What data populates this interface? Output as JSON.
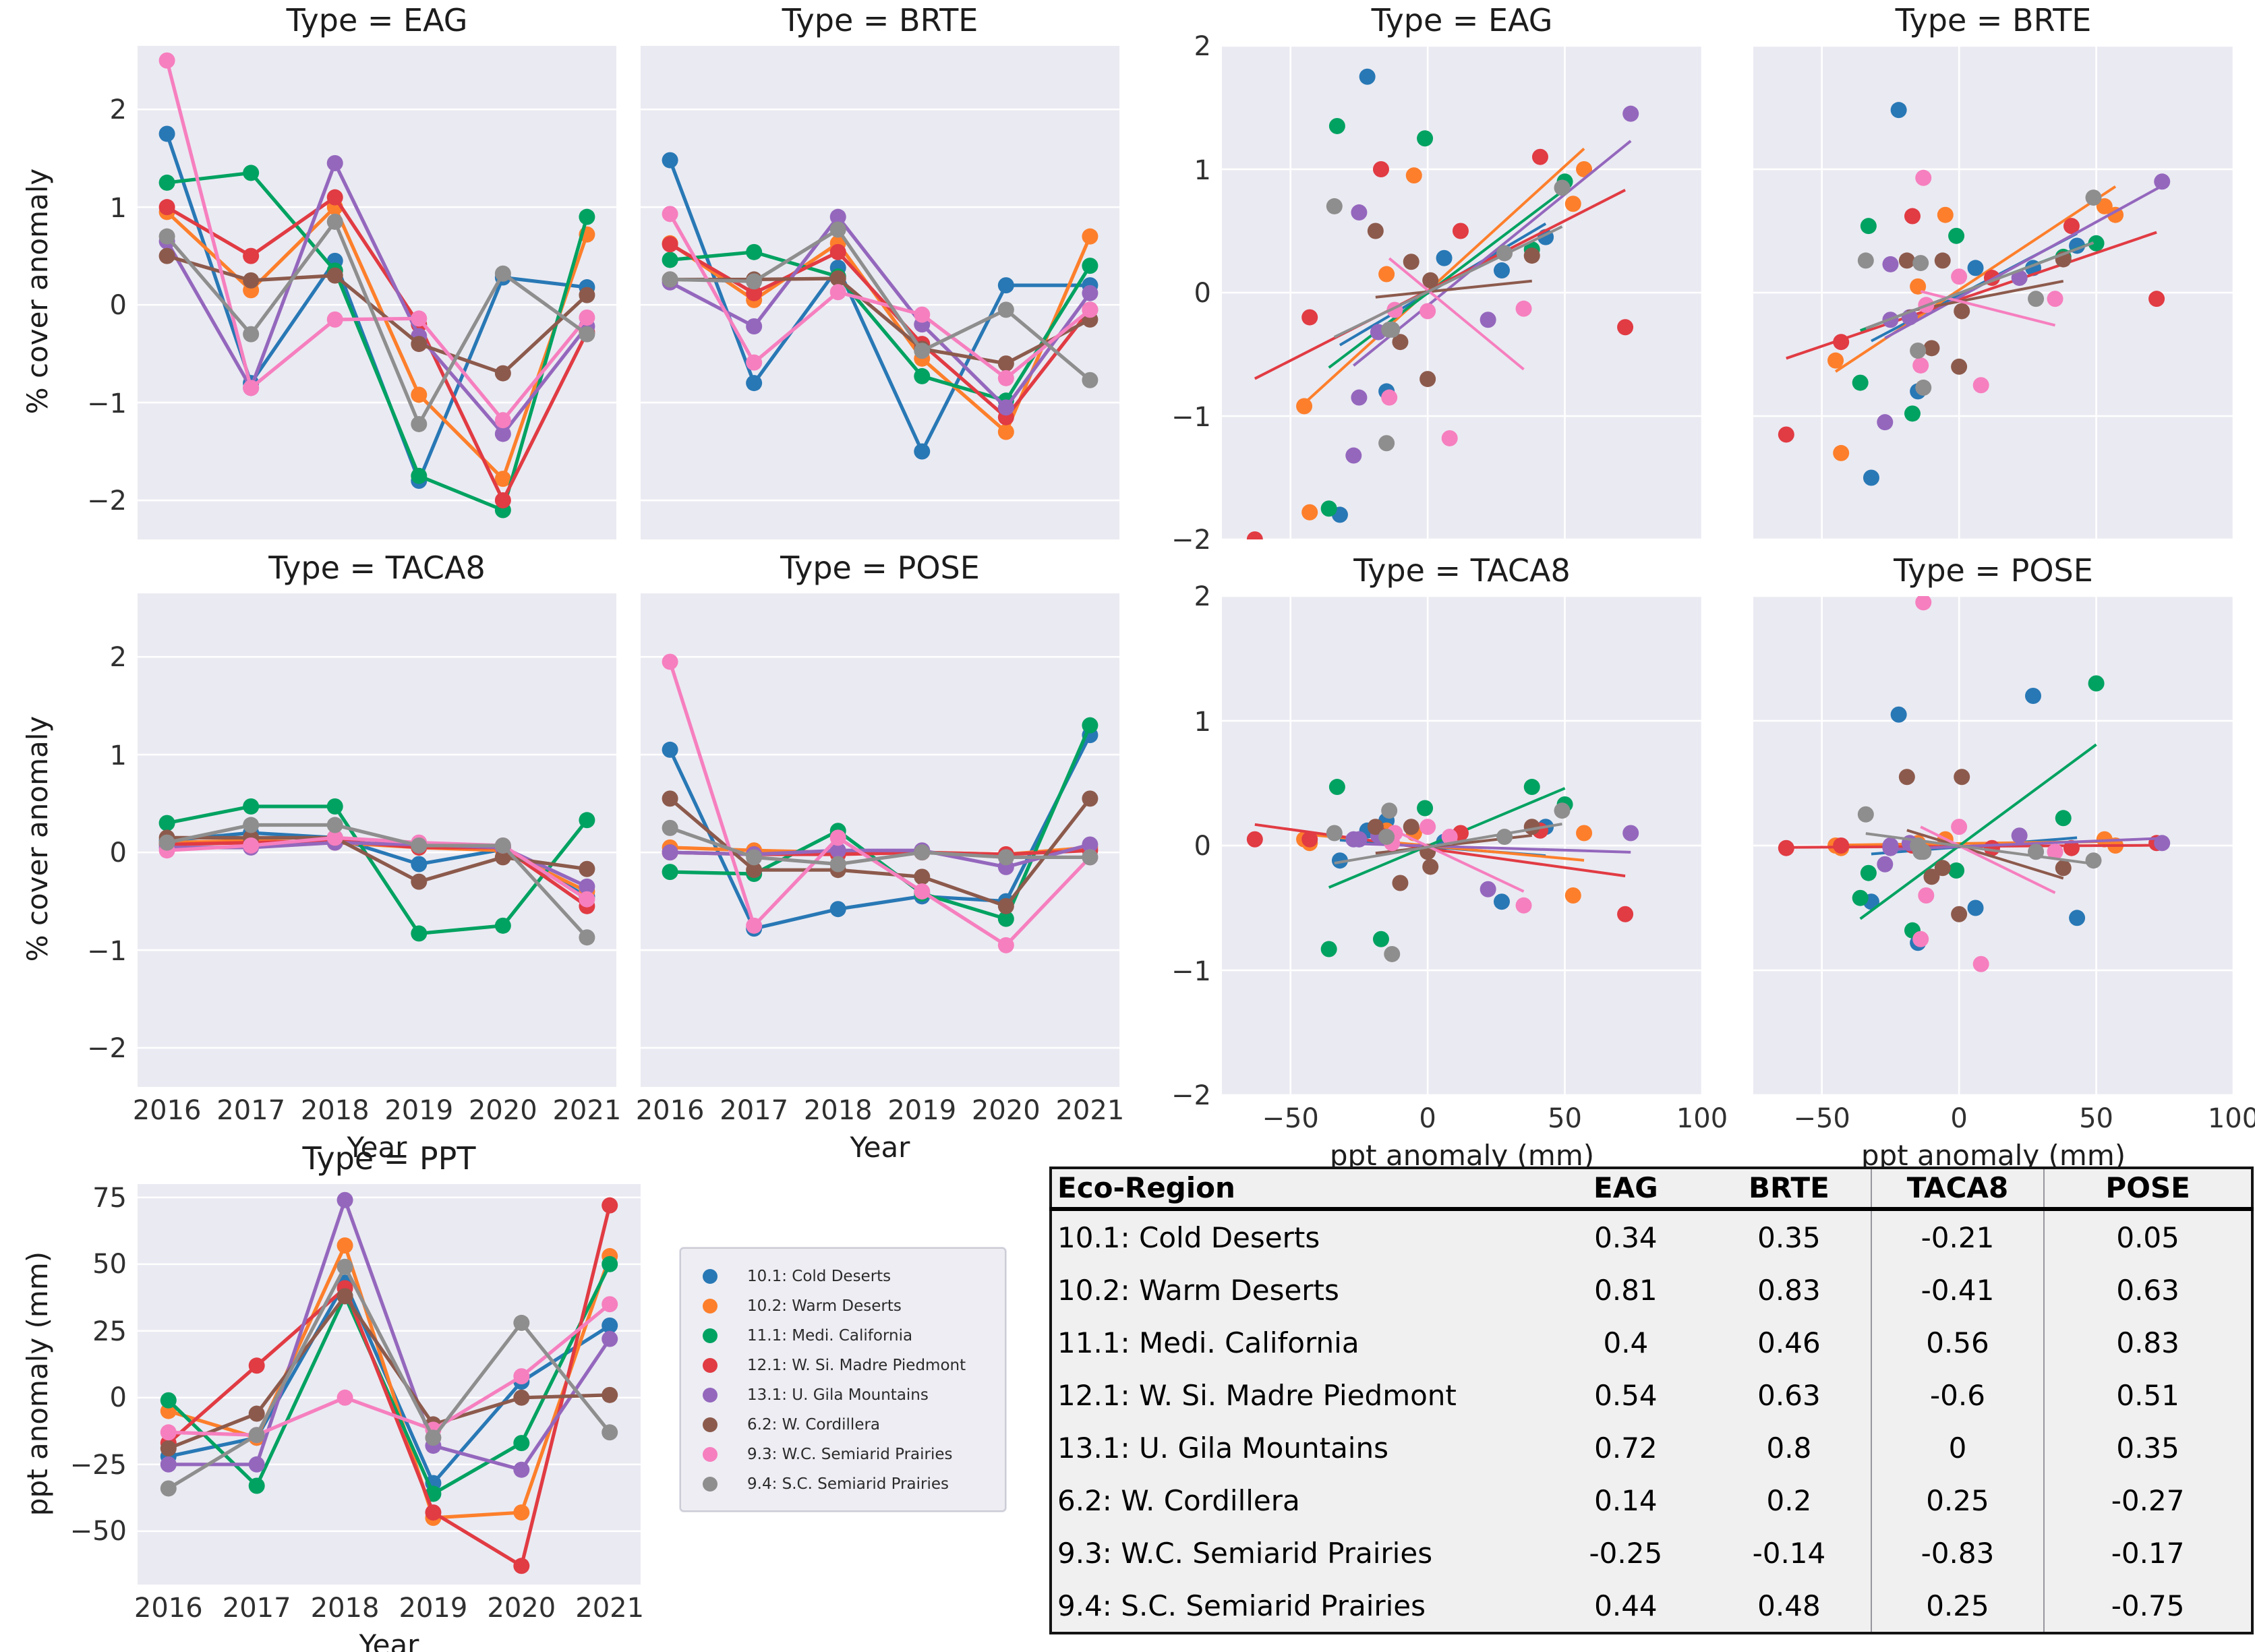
{
  "figure": {
    "background": "#ffffff",
    "panel_background": "#eaeaf2",
    "grid_color": "#ffffff",
    "text_color": "#303030"
  },
  "years": [
    2016,
    2017,
    2018,
    2019,
    2020,
    2021
  ],
  "regions": [
    {
      "id": "cold_deserts",
      "label": "10.1: Cold Deserts",
      "color": "#2878b5"
    },
    {
      "id": "warm_deserts",
      "label": "10.2: Warm Deserts",
      "color": "#fd7f2b"
    },
    {
      "id": "medi_california",
      "label": "11.1: Medi. California",
      "color": "#00a261"
    },
    {
      "id": "w_si_madre_piedmont",
      "label": "12.1: W. Si. Madre Piedmont",
      "color": "#e13b43"
    },
    {
      "id": "u_gila_mountains",
      "label": "13.1: U. Gila Mountains",
      "color": "#9467bd"
    },
    {
      "id": "w_cordillera",
      "label": "6.2: W. Cordillera",
      "color": "#8c5a4c"
    },
    {
      "id": "wc_semiarid_prairies",
      "label": "9.3: W.C. Semiarid Prairies",
      "color": "#f67fbf"
    },
    {
      "id": "sc_semiarid_prairies",
      "label": "9.4: S.C. Semiarid Prairies",
      "color": "#8e8e8e"
    }
  ],
  "chart_data": [
    {
      "id": "eag_line",
      "type": "line",
      "title": "Type = EAG",
      "ylabel": "% cover anomaly",
      "xlim": [
        2015.65,
        2021.35
      ],
      "ylim": [
        -2.4,
        2.65
      ],
      "yticks": [
        2,
        1,
        0,
        -1,
        -2
      ],
      "grid": "y",
      "legend_position": "none",
      "x": [
        2016,
        2017,
        2018,
        2019,
        2020,
        2021
      ],
      "series": [
        {
          "name": "10.1: Cold Deserts",
          "values": [
            1.75,
            -0.8,
            0.45,
            -1.8,
            0.28,
            0.18
          ]
        },
        {
          "name": "10.2: Warm Deserts",
          "values": [
            0.95,
            0.15,
            1.0,
            -0.92,
            -1.78,
            0.72
          ]
        },
        {
          "name": "11.1: Medi. California",
          "values": [
            1.25,
            1.35,
            0.35,
            -1.75,
            -2.1,
            0.9
          ]
        },
        {
          "name": "12.1: W. Si. Madre Piedmont",
          "values": [
            1.0,
            0.5,
            1.1,
            -0.2,
            -2.0,
            -0.28
          ]
        },
        {
          "name": "13.1: U. Gila Mountains",
          "values": [
            0.65,
            -0.85,
            1.45,
            -0.32,
            -1.32,
            -0.22
          ]
        },
        {
          "name": "6.2: W. Cordillera",
          "values": [
            0.5,
            0.25,
            0.3,
            -0.4,
            -0.7,
            0.1
          ]
        },
        {
          "name": "9.3: W.C. Semiarid Prairies",
          "values": [
            2.5,
            -0.85,
            -0.15,
            -0.14,
            -1.18,
            -0.13
          ]
        },
        {
          "name": "9.4: S.C. Semiarid Prairies",
          "values": [
            0.7,
            -0.3,
            0.85,
            -1.22,
            0.32,
            -0.3
          ]
        }
      ]
    },
    {
      "id": "brte_line",
      "type": "line",
      "title": "Type = BRTE",
      "xlim": [
        2015.65,
        2021.35
      ],
      "ylim": [
        -2.4,
        2.65
      ],
      "yticks": [
        2,
        1,
        0,
        -1,
        -2
      ],
      "grid": "y",
      "legend_position": "none",
      "x": [
        2016,
        2017,
        2018,
        2019,
        2020,
        2021
      ],
      "series": [
        {
          "name": "10.1: Cold Deserts",
          "values": [
            1.48,
            -0.8,
            0.38,
            -1.5,
            0.2,
            0.2
          ]
        },
        {
          "name": "10.2: Warm Deserts",
          "values": [
            0.63,
            0.05,
            0.63,
            -0.55,
            -1.3,
            0.7
          ]
        },
        {
          "name": "11.1: Medi. California",
          "values": [
            0.46,
            0.54,
            0.29,
            -0.73,
            -0.98,
            0.4
          ]
        },
        {
          "name": "12.1: W. Si. Madre Piedmont",
          "values": [
            0.62,
            0.12,
            0.54,
            -0.4,
            -1.15,
            -0.05
          ]
        },
        {
          "name": "13.1: U. Gila Mountains",
          "values": [
            0.23,
            -0.22,
            0.9,
            -0.2,
            -1.05,
            0.12
          ]
        },
        {
          "name": "6.2: W. Cordillera",
          "values": [
            0.26,
            0.26,
            0.27,
            -0.45,
            -0.6,
            -0.15
          ]
        },
        {
          "name": "9.3: W.C. Semiarid Prairies",
          "values": [
            0.93,
            -0.59,
            0.13,
            -0.1,
            -0.75,
            -0.05
          ]
        },
        {
          "name": "9.4: S.C. Semiarid Prairies",
          "values": [
            0.26,
            0.24,
            0.77,
            -0.47,
            -0.05,
            -0.77
          ]
        }
      ]
    },
    {
      "id": "taca8_line",
      "type": "line",
      "title": "Type = TACA8",
      "ylabel": "% cover anomaly",
      "xlabel": "Year",
      "xlim": [
        2015.65,
        2021.35
      ],
      "ylim": [
        -2.4,
        2.65
      ],
      "yticks": [
        2,
        1,
        0,
        -1,
        -2
      ],
      "xticks": [
        2016,
        2017,
        2018,
        2019,
        2020,
        2021
      ],
      "grid": "y",
      "legend_position": "none",
      "x": [
        2016,
        2017,
        2018,
        2019,
        2020,
        2021
      ],
      "series": [
        {
          "name": "10.1: Cold Deserts",
          "values": [
            0.12,
            0.2,
            0.15,
            -0.12,
            0.03,
            -0.45
          ]
        },
        {
          "name": "10.2: Warm Deserts",
          "values": [
            0.1,
            0.12,
            0.1,
            0.05,
            0.02,
            -0.4
          ]
        },
        {
          "name": "11.1: Medi. California",
          "values": [
            0.3,
            0.47,
            0.47,
            -0.83,
            -0.75,
            0.33
          ]
        },
        {
          "name": "12.1: W. Si. Madre Piedmont",
          "values": [
            0.08,
            0.1,
            0.12,
            0.05,
            0.05,
            -0.55
          ]
        },
        {
          "name": "13.1: U. Gila Mountains",
          "values": [
            0.05,
            0.05,
            0.1,
            0.08,
            0.05,
            -0.35
          ]
        },
        {
          "name": "6.2: W. Cordillera",
          "values": [
            0.15,
            0.15,
            0.15,
            -0.3,
            -0.05,
            -0.17
          ]
        },
        {
          "name": "9.3: W.C. Semiarid Prairies",
          "values": [
            0.02,
            0.07,
            0.15,
            0.1,
            0.07,
            -0.48
          ]
        },
        {
          "name": "9.4: S.C. Semiarid Prairies",
          "values": [
            0.1,
            0.28,
            0.28,
            0.07,
            0.07,
            -0.87
          ]
        }
      ]
    },
    {
      "id": "pose_line",
      "type": "line",
      "title": "Type = POSE",
      "xlabel": "Year",
      "xlim": [
        2015.65,
        2021.35
      ],
      "ylim": [
        -2.4,
        2.65
      ],
      "yticks": [
        2,
        1,
        0,
        -1,
        -2
      ],
      "xticks": [
        2016,
        2017,
        2018,
        2019,
        2020,
        2021
      ],
      "grid": "y",
      "legend_position": "none",
      "x": [
        2016,
        2017,
        2018,
        2019,
        2020,
        2021
      ],
      "series": [
        {
          "name": "10.1: Cold Deserts",
          "values": [
            1.05,
            -0.78,
            -0.58,
            -0.45,
            -0.5,
            1.2
          ]
        },
        {
          "name": "10.2: Warm Deserts",
          "values": [
            0.05,
            0.02,
            0.0,
            0.0,
            -0.02,
            0.05
          ]
        },
        {
          "name": "11.1: Medi. California",
          "values": [
            -0.2,
            -0.22,
            0.22,
            -0.42,
            -0.68,
            1.3
          ]
        },
        {
          "name": "12.1: W. Si. Madre Piedmont",
          "values": [
            0.0,
            -0.02,
            -0.02,
            0.0,
            -0.02,
            0.02
          ]
        },
        {
          "name": "13.1: U. Gila Mountains",
          "values": [
            0.0,
            -0.02,
            0.02,
            0.02,
            -0.15,
            0.08
          ]
        },
        {
          "name": "6.2: W. Cordillera",
          "values": [
            0.55,
            -0.18,
            -0.18,
            -0.25,
            -0.55,
            0.55
          ]
        },
        {
          "name": "9.3: W.C. Semiarid Prairies",
          "values": [
            1.95,
            -0.75,
            0.15,
            -0.4,
            -0.95,
            -0.05
          ]
        },
        {
          "name": "9.4: S.C. Semiarid Prairies",
          "values": [
            0.25,
            -0.05,
            -0.12,
            0.0,
            -0.05,
            -0.05
          ]
        }
      ]
    },
    {
      "id": "ppt_line",
      "type": "line",
      "title": "Type = PPT",
      "ylabel": "ppt anomaly (mm)",
      "xlabel": "Year",
      "xlim": [
        2015.65,
        2021.35
      ],
      "ylim": [
        -70,
        80
      ],
      "yticks": [
        75,
        50,
        25,
        0,
        -25,
        -50
      ],
      "xticks": [
        2016,
        2017,
        2018,
        2019,
        2020,
        2021
      ],
      "grid": "y",
      "legend_position": "none",
      "x": [
        2016,
        2017,
        2018,
        2019,
        2020,
        2021
      ],
      "series": [
        {
          "name": "10.1: Cold Deserts",
          "values": [
            -22,
            -15,
            43,
            -32,
            6,
            27
          ]
        },
        {
          "name": "10.2: Warm Deserts",
          "values": [
            -5,
            -15,
            57,
            -45,
            -43,
            53
          ]
        },
        {
          "name": "11.1: Medi. California",
          "values": [
            -1,
            -33,
            38,
            -36,
            -17,
            50
          ]
        },
        {
          "name": "12.1: W. Si. Madre Piedmont",
          "values": [
            -17,
            12,
            41,
            -43,
            -63,
            72
          ]
        },
        {
          "name": "13.1: U. Gila Mountains",
          "values": [
            -25,
            -25,
            74,
            -18,
            -27,
            22
          ]
        },
        {
          "name": "6.2: W. Cordillera",
          "values": [
            -19,
            -6,
            38,
            -10,
            0,
            1
          ]
        },
        {
          "name": "9.3: W.C. Semiarid Prairies",
          "values": [
            -13,
            -14,
            0,
            -12,
            8,
            35
          ]
        },
        {
          "name": "9.4: S.C. Semiarid Prairies",
          "values": [
            -34,
            -14,
            49,
            -15,
            28,
            -13
          ]
        }
      ]
    },
    {
      "id": "eag_scatter",
      "type": "scatter",
      "title": "Type = EAG",
      "x_from": "ppt_line",
      "y_from": "eag_line",
      "regression": true,
      "xlim": [
        -75,
        100
      ],
      "ylim": [
        -2,
        2
      ],
      "xticks": [
        -50,
        0,
        50,
        100
      ],
      "yticks": [
        2,
        1,
        0,
        -1,
        -2
      ],
      "grid": "xy"
    },
    {
      "id": "brte_scatter",
      "type": "scatter",
      "title": "Type = BRTE",
      "x_from": "ppt_line",
      "y_from": "brte_line",
      "regression": true,
      "xlim": [
        -75,
        100
      ],
      "ylim": [
        -2,
        2
      ],
      "xticks": [
        -50,
        0,
        50,
        100
      ],
      "yticks": [
        2,
        1,
        0,
        -1,
        -2
      ],
      "grid": "xy"
    },
    {
      "id": "taca8_scatter",
      "type": "scatter",
      "title": "Type = TACA8",
      "xlabel": "ppt anomaly (mm)",
      "x_from": "ppt_line",
      "y_from": "taca8_line",
      "regression": true,
      "xlim": [
        -75,
        100
      ],
      "ylim": [
        -2,
        2
      ],
      "xticks": [
        -50,
        0,
        50,
        100
      ],
      "yticks": [
        2,
        1,
        0,
        -1,
        -2
      ],
      "grid": "xy"
    },
    {
      "id": "pose_scatter",
      "type": "scatter",
      "title": "Type = POSE",
      "xlabel": "ppt anomaly (mm)",
      "x_from": "ppt_line",
      "y_from": "pose_line",
      "regression": true,
      "xlim": [
        -75,
        100
      ],
      "ylim": [
        -2,
        2
      ],
      "xticks": [
        -50,
        0,
        50,
        100
      ],
      "yticks": [
        2,
        1,
        0,
        -1,
        -2
      ],
      "grid": "xy"
    }
  ],
  "table": {
    "columns": [
      "Eco-Region",
      "EAG",
      "BRTE",
      "TACA8",
      "POSE"
    ],
    "rows": [
      {
        "region": "10.1: Cold Deserts",
        "eag": "0.34",
        "brte": "0.35",
        "taca8": "-0.21",
        "pose": "0.05"
      },
      {
        "region": "10.2: Warm Deserts",
        "eag": "0.81",
        "brte": "0.83",
        "taca8": "-0.41",
        "pose": "0.63"
      },
      {
        "region": "11.1: Medi. California",
        "eag": "0.4",
        "brte": "0.46",
        "taca8": "0.56",
        "pose": "0.83"
      },
      {
        "region": "12.1: W. Si. Madre Piedmont",
        "eag": "0.54",
        "brte": "0.63",
        "taca8": "-0.6",
        "pose": "0.51"
      },
      {
        "region": "13.1: U. Gila Mountains",
        "eag": "0.72",
        "brte": "0.8",
        "taca8": "0",
        "pose": "0.35"
      },
      {
        "region": "6.2: W. Cordillera",
        "eag": "0.14",
        "brte": "0.2",
        "taca8": "0.25",
        "pose": "-0.27"
      },
      {
        "region": "9.3: W.C. Semiarid Prairies",
        "eag": "-0.25",
        "brte": "-0.14",
        "taca8": "-0.83",
        "pose": "-0.17"
      },
      {
        "region": "9.4: S.C. Semiarid Prairies",
        "eag": "0.44",
        "brte": "0.48",
        "taca8": "0.25",
        "pose": "-0.75"
      }
    ]
  }
}
